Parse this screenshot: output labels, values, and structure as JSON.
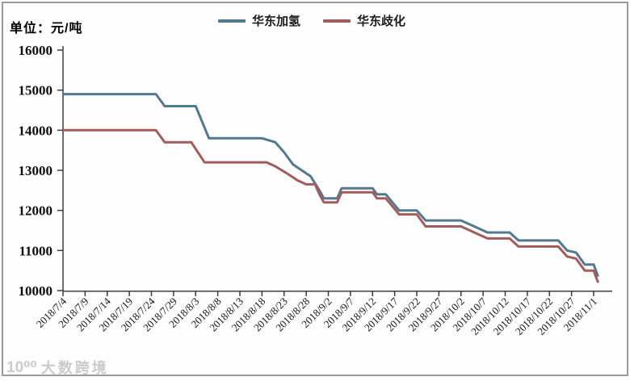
{
  "chart_data": {
    "type": "line",
    "unit_label": "单位：元/吨",
    "grid": false,
    "legend_position": "top-center",
    "ylim": [
      10000,
      16000
    ],
    "yticks": [
      16000,
      15000,
      14000,
      13000,
      12000,
      11000,
      10000
    ],
    "xticks": [
      "2018/7/4",
      "2018/7/9",
      "2018/7/14",
      "2018/7/19",
      "2018/7/24",
      "2018/7/29",
      "2018/8/3",
      "2018/8/8",
      "2018/8/13",
      "2018/8/18",
      "2018/8/23",
      "2018/8/28",
      "2018/9/2",
      "2018/9/7",
      "2018/9/12",
      "2018/9/17",
      "2018/9/22",
      "2018/9/27",
      "2018/10/2",
      "2018/10/7",
      "2018/10/12",
      "2018/10/17",
      "2018/10/22",
      "2018/10/27",
      "2018/11/1"
    ],
    "series": [
      {
        "name": "华东加氢",
        "color": "#54788e",
        "points": [
          [
            "2018/7/4",
            14900
          ],
          [
            "2018/7/25",
            14900
          ],
          [
            "2018/7/27",
            14600
          ],
          [
            "2018/8/3",
            14600
          ],
          [
            "2018/8/6",
            13800
          ],
          [
            "2018/8/18",
            13800
          ],
          [
            "2018/8/21",
            13700
          ],
          [
            "2018/8/23",
            13450
          ],
          [
            "2018/8/25",
            13150
          ],
          [
            "2018/8/27",
            13000
          ],
          [
            "2018/8/29",
            12850
          ],
          [
            "2018/8/31",
            12500
          ],
          [
            "2018/9/1",
            12300
          ],
          [
            "2018/9/4",
            12300
          ],
          [
            "2018/9/5",
            12550
          ],
          [
            "2018/9/12",
            12550
          ],
          [
            "2018/9/13",
            12400
          ],
          [
            "2018/9/15",
            12400
          ],
          [
            "2018/9/18",
            12000
          ],
          [
            "2018/9/22",
            12000
          ],
          [
            "2018/9/24",
            11750
          ],
          [
            "2018/10/2",
            11750
          ],
          [
            "2018/10/5",
            11600
          ],
          [
            "2018/10/8",
            11450
          ],
          [
            "2018/10/13",
            11450
          ],
          [
            "2018/10/15",
            11250
          ],
          [
            "2018/10/24",
            11250
          ],
          [
            "2018/10/26",
            11000
          ],
          [
            "2018/10/28",
            10950
          ],
          [
            "2018/10/30",
            10650
          ],
          [
            "2018/11/1",
            10650
          ],
          [
            "2018/11/2",
            10350
          ]
        ]
      },
      {
        "name": "华东歧化",
        "color": "#a35c5c",
        "points": [
          [
            "2018/7/4",
            14000
          ],
          [
            "2018/7/25",
            14000
          ],
          [
            "2018/7/27",
            13700
          ],
          [
            "2018/8/2",
            13700
          ],
          [
            "2018/8/5",
            13200
          ],
          [
            "2018/8/19",
            13200
          ],
          [
            "2018/8/21",
            13100
          ],
          [
            "2018/8/24",
            12900
          ],
          [
            "2018/8/26",
            12750
          ],
          [
            "2018/8/28",
            12650
          ],
          [
            "2018/8/30",
            12650
          ],
          [
            "2018/8/31",
            12400
          ],
          [
            "2018/9/1",
            12200
          ],
          [
            "2018/9/4",
            12200
          ],
          [
            "2018/9/5",
            12450
          ],
          [
            "2018/9/12",
            12450
          ],
          [
            "2018/9/13",
            12300
          ],
          [
            "2018/9/15",
            12300
          ],
          [
            "2018/9/18",
            11900
          ],
          [
            "2018/9/22",
            11900
          ],
          [
            "2018/9/24",
            11600
          ],
          [
            "2018/10/2",
            11600
          ],
          [
            "2018/10/5",
            11450
          ],
          [
            "2018/10/8",
            11300
          ],
          [
            "2018/10/13",
            11300
          ],
          [
            "2018/10/15",
            11100
          ],
          [
            "2018/10/24",
            11100
          ],
          [
            "2018/10/26",
            10850
          ],
          [
            "2018/10/28",
            10800
          ],
          [
            "2018/10/30",
            10500
          ],
          [
            "2018/11/1",
            10500
          ],
          [
            "2018/11/2",
            10200
          ]
        ]
      }
    ]
  },
  "watermark": {
    "logo_text": "10⁰⁰",
    "name": "大数跨境"
  }
}
